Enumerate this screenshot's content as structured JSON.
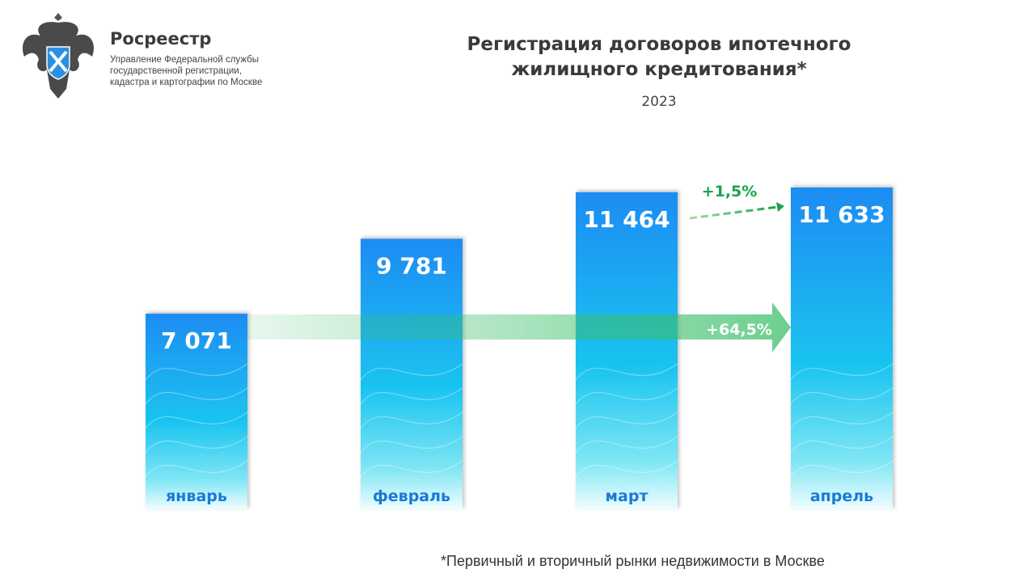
{
  "header": {
    "brand": "Росреестр",
    "subtitle_lines": [
      "Управление Федеральной службы",
      "государственной регистрации,",
      "кадастра и картографии по Москве"
    ]
  },
  "footnote": "*Первичный и вторичный рынки недвижимости в Москве",
  "colors": {
    "bar_top": "#1f8cf3",
    "bar_bottom": "#e8fbff",
    "month_label": "#1a7ad4",
    "growth": "#1aa34a"
  },
  "chart_data": {
    "type": "bar",
    "title": "Регистрация договоров ипотечного жилищного кредитования*",
    "subtitle": "2023",
    "categories": [
      "январь",
      "февраль",
      "март",
      "апрель"
    ],
    "values": [
      7071,
      9781,
      11464,
      11633
    ],
    "value_labels": [
      "7 071",
      "9 781",
      "11 464",
      "11 633"
    ],
    "ylim": [
      0,
      11633
    ],
    "annotations": [
      {
        "text": "+64,5%",
        "from": "январь",
        "to": "апрель"
      },
      {
        "text": "+1,5%",
        "from": "март",
        "to": "апрель"
      }
    ],
    "grid": false,
    "legend": "none"
  }
}
